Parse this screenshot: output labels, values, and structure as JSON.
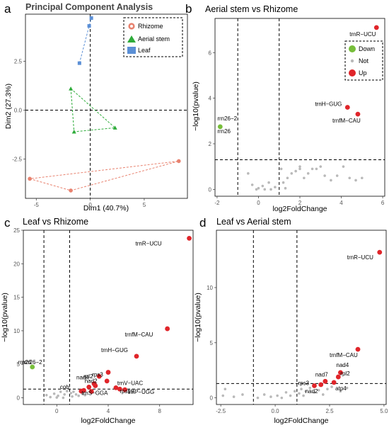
{
  "panels": {
    "a": {
      "letter": "a",
      "title": "Principal Component Analysis"
    },
    "b": {
      "letter": "b",
      "title": "Aerial stem vs Rhizome"
    },
    "c": {
      "letter": "c",
      "title": "Leaf vs Rhizome"
    },
    "d": {
      "letter": "d",
      "title": "Leaf vs Aerial stem"
    }
  },
  "colors": {
    "rhizome": "#e8826f",
    "aerial_stem": "#2eac3a",
    "leaf": "#5b8fd6",
    "up": "#e0252a",
    "down": "#77be3a",
    "not": "#b9b9b9"
  },
  "chart_data": [
    {
      "id": "a",
      "type": "scatter",
      "title": "Principal Component Analysis",
      "xlabel": "Dim1 (40.7%)",
      "ylabel": "Dim2 (27.3%)",
      "xlim": [
        -6.0,
        9.0
      ],
      "ylim": [
        -4.5,
        4.9
      ],
      "xticks": [
        -5,
        0,
        5
      ],
      "yticks": [
        -2.5,
        0.0,
        2.5
      ],
      "yticklabels": [
        "-2.5",
        "0.0",
        "2.5"
      ],
      "legend_position": "top-right",
      "series": [
        {
          "name": "Rhizome",
          "marker": "circle",
          "color": "#e8826f",
          "points": [
            [
              -5.6,
              -3.5
            ],
            [
              -1.8,
              -4.1
            ],
            [
              8.2,
              -2.6
            ]
          ]
        },
        {
          "name": "Aerial stem",
          "marker": "triangle",
          "color": "#2eac3a",
          "points": [
            [
              -1.8,
              1.1
            ],
            [
              -1.5,
              -1.1
            ],
            [
              2.3,
              -0.9
            ]
          ]
        },
        {
          "name": "Leaf",
          "marker": "square",
          "color": "#5b8fd6",
          "points": [
            [
              -1.0,
              2.4
            ],
            [
              -0.1,
              4.3
            ],
            [
              0.1,
              4.7
            ]
          ]
        }
      ]
    },
    {
      "id": "b",
      "type": "scatter",
      "title": "Aerial stem vs Rhizome",
      "xlabel": "log2FoldChange",
      "ylabel": "−log10(pvalue)",
      "xlim": [
        -2.1,
        6.1
      ],
      "ylim": [
        -0.3,
        7.5
      ],
      "xticks": [
        -2,
        0,
        2,
        4,
        6
      ],
      "yticks": [
        0,
        2,
        4,
        6
      ],
      "vlines": [
        -1,
        1
      ],
      "hline": 1.3,
      "legend_position": "top-right",
      "legend": [
        "Down",
        "Not",
        "Up"
      ],
      "up": [
        [
          5.7,
          7.1
        ],
        [
          4.3,
          3.6
        ],
        [
          4.8,
          3.3
        ]
      ],
      "down": [
        [
          -1.85,
          2.75
        ]
      ],
      "not": [
        [
          -0.5,
          0.7
        ],
        [
          -0.3,
          0.2
        ],
        [
          0.0,
          0.05
        ],
        [
          0.2,
          0.15
        ],
        [
          0.5,
          0.3
        ],
        [
          0.8,
          0.1
        ],
        [
          -0.1,
          0.0
        ],
        [
          0.3,
          0.0
        ],
        [
          0.6,
          0.0
        ],
        [
          1.1,
          0.9
        ],
        [
          1.2,
          0.3
        ],
        [
          1.4,
          0.5
        ],
        [
          1.6,
          0.7
        ],
        [
          1.8,
          0.8
        ],
        [
          2.0,
          0.9
        ],
        [
          2.2,
          0.5
        ],
        [
          2.4,
          0.7
        ],
        [
          2.6,
          0.9
        ],
        [
          2.8,
          0.9
        ],
        [
          3.0,
          1.0
        ],
        [
          3.2,
          0.6
        ],
        [
          3.5,
          0.4
        ],
        [
          3.8,
          0.6
        ],
        [
          4.1,
          1.0
        ],
        [
          4.4,
          0.5
        ],
        [
          4.7,
          0.4
        ],
        [
          5.0,
          0.5
        ],
        [
          2.0,
          1.0
        ],
        [
          1.3,
          0.05
        ]
      ],
      "labels": [
        {
          "text": "trnR−UCU",
          "x": 5.7,
          "y": 7.1
        },
        {
          "text": "trnH−GUG",
          "x": 4.3,
          "y": 3.6
        },
        {
          "text": "trnfM−CAU",
          "x": 4.8,
          "y": 3.3
        },
        {
          "text": "rrn26−2",
          "x": -1.85,
          "y": 2.75
        },
        {
          "text": "rrn26",
          "x": -1.85,
          "y": 2.75
        }
      ]
    },
    {
      "id": "c",
      "type": "scatter",
      "title": "Leaf vs Rhizome",
      "xlabel": "log2FoldChange",
      "ylabel": "−log10(pvalue)",
      "xlim": [
        -2.6,
        10.6
      ],
      "ylim": [
        -1.0,
        25.0
      ],
      "xticks": [
        0,
        4,
        8
      ],
      "yticks": [
        0,
        5,
        10,
        15,
        20,
        25
      ],
      "vlines": [
        -1,
        1
      ],
      "hline": 1.3,
      "up": [
        [
          10.3,
          23.8
        ],
        [
          8.6,
          10.3
        ],
        [
          6.2,
          6.2
        ],
        [
          4.0,
          3.8
        ],
        [
          3.3,
          3.2
        ],
        [
          3.9,
          2.5
        ],
        [
          2.9,
          2.1
        ],
        [
          3.0,
          1.8
        ],
        [
          2.5,
          1.6
        ],
        [
          2.1,
          1.1
        ],
        [
          1.9,
          1.0
        ],
        [
          4.6,
          1.5
        ],
        [
          4.9,
          1.3
        ],
        [
          5.3,
          1.2
        ],
        [
          2.7,
          0.95
        ]
      ],
      "down": [
        [
          -1.9,
          4.6
        ]
      ],
      "not": [
        [
          -0.8,
          0.4
        ],
        [
          -0.5,
          0.1
        ],
        [
          -0.2,
          0.6
        ],
        [
          0.1,
          0.3
        ],
        [
          0.3,
          0.9
        ],
        [
          0.6,
          0.5
        ],
        [
          0.8,
          1.0
        ],
        [
          1.1,
          0.7
        ],
        [
          1.2,
          0.2
        ],
        [
          1.3,
          0.9
        ],
        [
          1.5,
          0.5
        ],
        [
          1.7,
          0.3
        ],
        [
          2.0,
          0.6
        ],
        [
          2.2,
          0.4
        ],
        [
          0.0,
          0.05
        ],
        [
          0.5,
          0.0
        ]
      ],
      "labels": [
        {
          "text": "trnR−UCU",
          "x": 10.3,
          "y": 23.8
        },
        {
          "text": "trnfM−CAU",
          "x": 8.6,
          "y": 10.3
        },
        {
          "text": "trnH−GUG",
          "x": 6.2,
          "y": 6.2
        },
        {
          "text": "rrn26−2",
          "x": -1.9,
          "y": 4.6
        },
        {
          "text": "rrn26",
          "x": -1.9,
          "y": 4.6
        },
        {
          "text": "rps3",
          "x": 3.3,
          "y": 3.2
        },
        {
          "text": "rpl2",
          "x": 3.9,
          "y": 2.5
        },
        {
          "text": "nad2",
          "x": 2.5,
          "y": 1.6
        },
        {
          "text": "trnV−UAC",
          "x": 4.6,
          "y": 1.5
        },
        {
          "text": "nad4",
          "x": 2.9,
          "y": 2.1
        },
        {
          "text": "rps19",
          "x": 4.9,
          "y": 1.3
        },
        {
          "text": "cob",
          "x": 1.9,
          "y": 1.0
        },
        {
          "text": "trnS−GGA",
          "x": 2.7,
          "y": 0.95
        },
        {
          "text": "trnP−UGG",
          "x": 5.3,
          "y": 1.2
        }
      ]
    },
    {
      "id": "d",
      "type": "scatter",
      "title": "Leaf vs Aerial stem",
      "xlabel": "log2FoldChange",
      "ylabel": "−log10(pvalue)",
      "xlim": [
        -2.7,
        5.1
      ],
      "ylim": [
        -0.6,
        15.2
      ],
      "xticks": [
        -2.5,
        0.0,
        2.5,
        5.0
      ],
      "xticklabels": [
        "-2.5",
        "0.0",
        "2.5",
        "5.0"
      ],
      "yticks": [
        0,
        5,
        10
      ],
      "vlines": [
        -1,
        1
      ],
      "hline": 1.3,
      "up": [
        [
          4.8,
          13.2
        ],
        [
          3.8,
          4.4
        ],
        [
          3.0,
          2.3
        ],
        [
          2.9,
          1.9
        ],
        [
          2.7,
          1.4
        ],
        [
          2.3,
          1.5
        ],
        [
          2.1,
          1.2
        ],
        [
          1.8,
          1.1
        ]
      ],
      "not": [
        [
          -2.4,
          0.2
        ],
        [
          -1.9,
          0.1
        ],
        [
          -1.5,
          0.3
        ],
        [
          -0.8,
          0.0
        ],
        [
          -0.5,
          0.3
        ],
        [
          -0.2,
          0.1
        ],
        [
          0.1,
          0.2
        ],
        [
          0.3,
          0.0
        ],
        [
          0.5,
          0.5
        ],
        [
          0.7,
          0.2
        ],
        [
          0.9,
          0.6
        ],
        [
          1.1,
          0.4
        ],
        [
          1.2,
          0.8
        ],
        [
          1.3,
          0.2
        ],
        [
          1.4,
          0.6
        ],
        [
          1.6,
          0.9
        ],
        [
          1.8,
          0.5
        ],
        [
          2.0,
          0.7
        ],
        [
          2.2,
          0.3
        ],
        [
          2.4,
          0.8
        ],
        [
          2.6,
          1.0
        ],
        [
          3.0,
          0.6
        ],
        [
          3.3,
          0.9
        ],
        [
          -2.3,
          0.8
        ]
      ],
      "labels": [
        {
          "text": "trnR−UCU",
          "x": 4.8,
          "y": 13.2
        },
        {
          "text": "trnfM−CAU",
          "x": 3.8,
          "y": 4.4
        },
        {
          "text": "nad4",
          "x": 3.0,
          "y": 2.3
        },
        {
          "text": "nad7",
          "x": 2.3,
          "y": 1.5
        },
        {
          "text": "rpl2",
          "x": 2.9,
          "y": 1.9
        },
        {
          "text": "rps3",
          "x": 1.8,
          "y": 1.1
        },
        {
          "text": "nad2",
          "x": 2.1,
          "y": 1.2
        },
        {
          "text": "atp4",
          "x": 2.7,
          "y": 1.4
        }
      ]
    }
  ]
}
